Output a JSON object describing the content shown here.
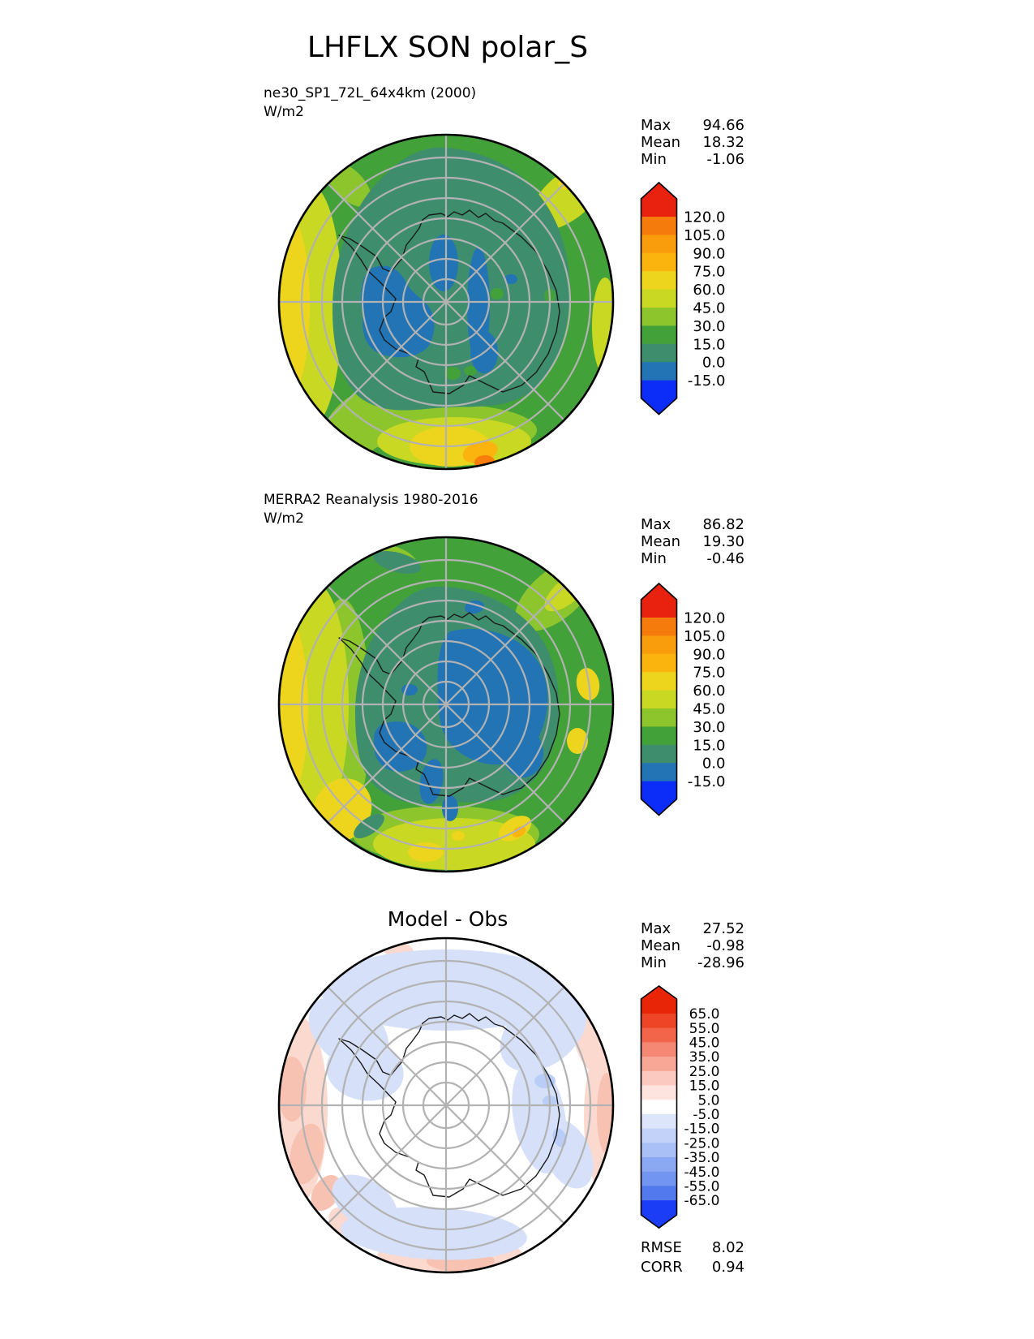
{
  "title": "LHFLX SON polar_S",
  "panels": [
    {
      "name": "model",
      "label": "ne30_SP1_72L_64x4km (2000)",
      "units": "W/m2",
      "stats": [
        {
          "label": "Max",
          "value": "94.66"
        },
        {
          "label": "Mean",
          "value": "18.32"
        },
        {
          "label": "Min",
          "value": "-1.06"
        }
      ],
      "colorbar": {
        "ticks": [
          "120.0",
          "105.0",
          "90.0",
          "75.0",
          "60.0",
          "45.0",
          "30.0",
          "15.0",
          "0.0",
          "-15.0"
        ],
        "colors": [
          "#e8220e",
          "#f57b0c",
          "#fa9d0c",
          "#fbb30d",
          "#edd51e",
          "#c9d822",
          "#8dc62c",
          "#43a139",
          "#3e8e6e",
          "#2274b5",
          "#0c2cf8"
        ]
      }
    },
    {
      "name": "obs",
      "label": "MERRA2 Reanalysis 1980-2016",
      "units": "W/m2",
      "stats": [
        {
          "label": "Max",
          "value": "86.82"
        },
        {
          "label": "Mean",
          "value": "19.30"
        },
        {
          "label": "Min",
          "value": "-0.46"
        }
      ],
      "colorbar": {
        "ticks": [
          "120.0",
          "105.0",
          "90.0",
          "75.0",
          "60.0",
          "45.0",
          "30.0",
          "15.0",
          "0.0",
          "-15.0"
        ],
        "colors": [
          "#e8220e",
          "#f57b0c",
          "#fa9d0c",
          "#fbb30d",
          "#edd51e",
          "#c9d822",
          "#8dc62c",
          "#43a139",
          "#3e8e6e",
          "#2274b5",
          "#0c2cf8"
        ]
      }
    },
    {
      "name": "diff",
      "title": "Model - Obs",
      "stats": [
        {
          "label": "Max",
          "value": "27.52"
        },
        {
          "label": "Mean",
          "value": "-0.98"
        },
        {
          "label": "Min",
          "value": "-28.96"
        }
      ],
      "colorbar": {
        "ticks": [
          "65.0",
          "55.0",
          "45.0",
          "35.0",
          "25.0",
          "15.0",
          "5.0",
          "-5.0",
          "-15.0",
          "-25.0",
          "-35.0",
          "-45.0",
          "-55.0",
          "-65.0"
        ],
        "colors": [
          "#e92507",
          "#ee4526",
          "#f2654a",
          "#f58874",
          "#f8a796",
          "#fbc9bf",
          "#fde4de",
          "#ffffff",
          "#dde5fa",
          "#c2d2f8",
          "#a9c0f6",
          "#8ba9f3",
          "#7195f1",
          "#5379ee",
          "#1b3df5"
        ]
      },
      "metrics": [
        {
          "label": "RMSE",
          "value": "8.02"
        },
        {
          "label": "CORR",
          "value": "0.94"
        }
      ]
    }
  ],
  "chart_data": [
    {
      "type": "heatmap",
      "subtype": "filled-contour map, south polar stereographic projection",
      "region": "polar_S (Antarctica / Southern Ocean)",
      "title": "ne30_SP1_72L_64x4km (2000)",
      "variable": "LHFLX",
      "season": "SON",
      "units": "W/m2",
      "stats": {
        "max": 94.66,
        "mean": 18.32,
        "min": -1.06
      },
      "contour_levels": [
        -15.0,
        0.0,
        15.0,
        30.0,
        45.0,
        60.0,
        75.0,
        90.0,
        105.0,
        120.0
      ],
      "colorbar_colors": [
        "#e8220e",
        "#f57b0c",
        "#fa9d0c",
        "#fbb30d",
        "#edd51e",
        "#c9d822",
        "#8dc62c",
        "#43a139",
        "#3e8e6e",
        "#2274b5",
        "#0c2cf8"
      ],
      "legend_position": "right",
      "grid": "graticule circles and radials, gray",
      "notes": "0-15 W/m2 (teal) over most of high-latitude interior; negative (-15-0, steel blue) patches over Antarctic interior; values increase outward to 45-75 (yellow-green/yellow) near 50S, local 75-105 (orange) spots at lower-center and upper-right edge"
    },
    {
      "type": "heatmap",
      "subtype": "filled-contour map, south polar stereographic projection",
      "region": "polar_S (Antarctica / Southern Ocean)",
      "title": "MERRA2 Reanalysis 1980-2016",
      "variable": "LHFLX",
      "season": "SON",
      "units": "W/m2",
      "stats": {
        "max": 86.82,
        "mean": 19.3,
        "min": -0.46
      },
      "contour_levels": [
        -15.0,
        0.0,
        15.0,
        30.0,
        45.0,
        60.0,
        75.0,
        90.0,
        105.0,
        120.0
      ],
      "colorbar_colors": [
        "#e8220e",
        "#f57b0c",
        "#fa9d0c",
        "#fbb30d",
        "#edd51e",
        "#c9d822",
        "#8dc62c",
        "#43a139",
        "#3e8e6e",
        "#2274b5",
        "#0c2cf8"
      ],
      "legend_position": "right",
      "grid": "graticule circles and radials, gray",
      "notes": "large -15-0 W/m2 (steel blue) region over East Antarctic interior and West Antarctica; teal 0-15 band around it; green 15-45 over ocean; 45-75 (yellow) along left (far-from-pole) edge"
    },
    {
      "type": "heatmap",
      "subtype": "difference map, south polar stereographic projection",
      "region": "polar_S (Antarctica / Southern Ocean)",
      "title": "Model - Obs",
      "variable": "LHFLX difference",
      "season": "SON",
      "units": "W/m2",
      "stats": {
        "max": 27.52,
        "mean": -0.98,
        "min": -28.96
      },
      "rmse": 8.02,
      "corr": 0.94,
      "contour_levels": [
        -65.0,
        -55.0,
        -45.0,
        -35.0,
        -25.0,
        -15.0,
        -5.0,
        5.0,
        15.0,
        25.0,
        35.0,
        45.0,
        55.0,
        65.0
      ],
      "colorbar_colors": [
        "#e92507",
        "#ee4526",
        "#f2654a",
        "#f58874",
        "#f8a796",
        "#fbc9bf",
        "#fde4de",
        "#ffffff",
        "#dde5fa",
        "#c2d2f8",
        "#a9c0f6",
        "#8ba9f3",
        "#7195f1",
        "#5379ee",
        "#1b3df5"
      ],
      "legend_position": "right",
      "grid": "graticule circles and radials, gray",
      "notes": "mostly near-zero (white) over continent; weak negative (-5 to -15, light blue) ring over ocean around coast and top; weak positive (5-25, pink) bands at left, right and bottom edges"
    }
  ]
}
